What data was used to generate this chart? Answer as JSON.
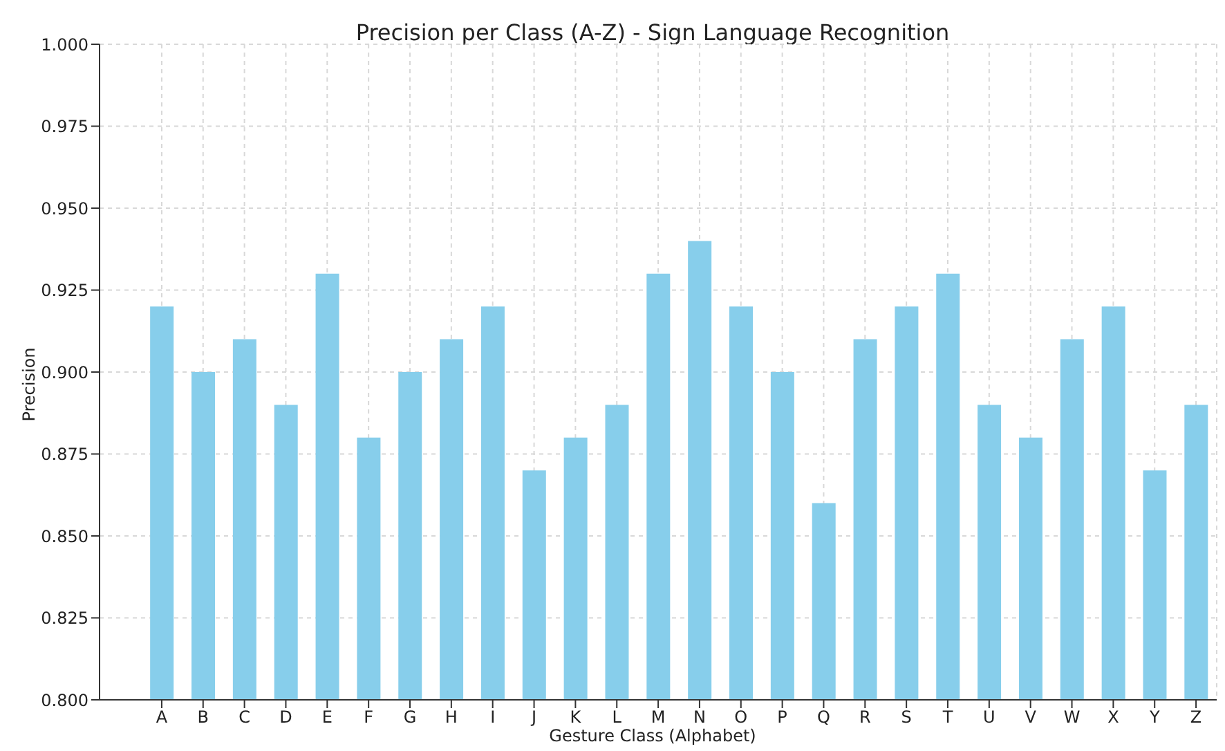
{
  "chart_data": {
    "type": "bar",
    "title": "Precision per Class (A-Z) - Sign Language Recognition",
    "xlabel": "Gesture Class (Alphabet)",
    "ylabel": "Precision",
    "categories": [
      "A",
      "B",
      "C",
      "D",
      "E",
      "F",
      "G",
      "H",
      "I",
      "J",
      "K",
      "L",
      "M",
      "N",
      "O",
      "P",
      "Q",
      "R",
      "S",
      "T",
      "U",
      "V",
      "W",
      "X",
      "Y",
      "Z"
    ],
    "values": [
      0.92,
      0.9,
      0.91,
      0.89,
      0.93,
      0.88,
      0.9,
      0.91,
      0.92,
      0.87,
      0.88,
      0.89,
      0.93,
      0.94,
      0.92,
      0.9,
      0.86,
      0.91,
      0.92,
      0.93,
      0.89,
      0.88,
      0.91,
      0.92,
      0.87,
      0.89
    ],
    "color": "#87ceeb",
    "ylim": [
      0.8,
      1.0
    ],
    "yticks": [
      {
        "value": 0.8,
        "label": "0.800"
      },
      0.825,
      {
        "value": 0.85,
        "label": "0.850"
      },
      0.875,
      {
        "value": 0.9,
        "label": "0.900"
      },
      0.925,
      {
        "value": 0.95,
        "label": "0.950"
      },
      0.975,
      {
        "value": 1.0,
        "label": "1.000"
      }
    ],
    "grid": true
  }
}
